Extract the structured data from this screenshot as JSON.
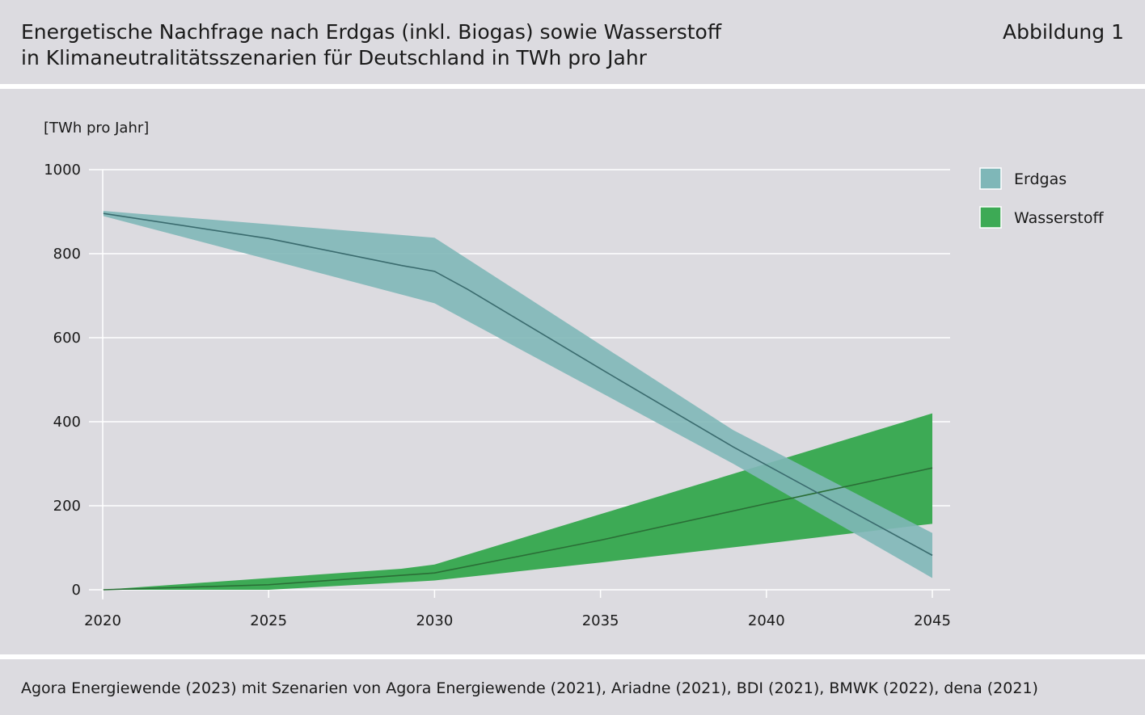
{
  "header": {
    "title_line1": "Energetische Nachfrage nach Erdgas (inkl. Biogas) sowie Wasserstoff",
    "title_line2": "in Klimaneutralitätsszenarien für Deutschland in TWh pro Jahr",
    "figure_label": "Abbildung 1"
  },
  "footer": {
    "source": "Agora Energiewende (2023) mit Szenarien von Agora Energiewende (2021), Ariadne (2021), BDI (2021), BMWK (2022), dena (2021)"
  },
  "colors": {
    "erdgas_band": "#7fb7b8",
    "erdgas_line": "#3a6b6e",
    "wasserstoff_band": "#3daa55",
    "wasserstoff_line": "#2a6e36",
    "grid": "#ffffff",
    "axis": "#ffffff",
    "background": "#dcdbe0"
  },
  "chart_data": {
    "type": "area",
    "title": "Energetische Nachfrage nach Erdgas (inkl. Biogas) sowie Wasserstoff in Klimaneutralitätsszenarien für Deutschland in TWh pro Jahr",
    "ylabel": "[TWh pro Jahr]",
    "xlabel": "",
    "xlim": [
      2020,
      2045
    ],
    "ylim": [
      0,
      1000
    ],
    "xticks": [
      2020,
      2025,
      2030,
      2035,
      2040,
      2045
    ],
    "yticks": [
      0,
      200,
      400,
      600,
      800,
      1000
    ],
    "legend_position": "right",
    "series": [
      {
        "name": "Erdgas",
        "band_upper": [
          [
            2020,
            902
          ],
          [
            2030,
            838
          ],
          [
            2039,
            380
          ],
          [
            2045,
            135
          ]
        ],
        "band_lower": [
          [
            2020,
            890
          ],
          [
            2030,
            682
          ],
          [
            2039,
            300
          ],
          [
            2045,
            28
          ]
        ],
        "median": [
          [
            2020,
            896
          ],
          [
            2025,
            836
          ],
          [
            2029,
            772
          ],
          [
            2030,
            758
          ],
          [
            2031,
            715
          ],
          [
            2035,
            526
          ],
          [
            2039,
            340
          ],
          [
            2045,
            82
          ]
        ]
      },
      {
        "name": "Wasserstoff",
        "band_upper": [
          [
            2020,
            0
          ],
          [
            2025,
            28
          ],
          [
            2029,
            50
          ],
          [
            2030,
            60
          ],
          [
            2035,
            180
          ],
          [
            2040,
            300
          ],
          [
            2045,
            420
          ]
        ],
        "band_lower": [
          [
            2020,
            0
          ],
          [
            2025,
            0
          ],
          [
            2030,
            22
          ],
          [
            2035,
            65
          ],
          [
            2040,
            110
          ],
          [
            2045,
            157
          ]
        ],
        "median": [
          [
            2020,
            0
          ],
          [
            2025,
            12
          ],
          [
            2030,
            40
          ],
          [
            2035,
            118
          ],
          [
            2040,
            205
          ],
          [
            2045,
            290
          ]
        ]
      }
    ]
  }
}
